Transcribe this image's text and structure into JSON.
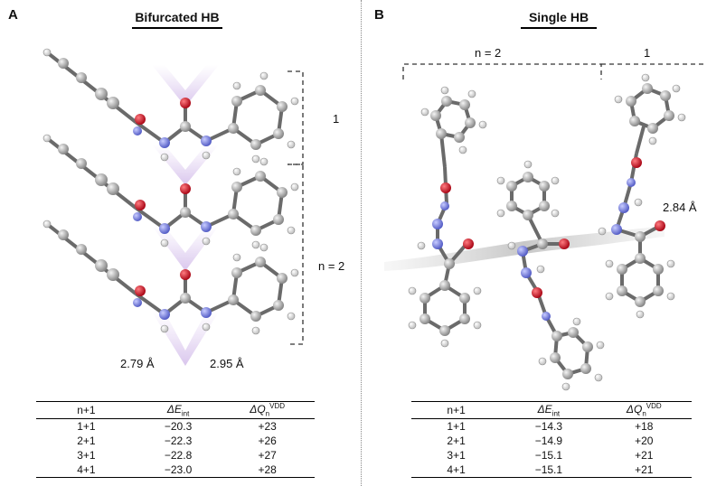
{
  "panelA": {
    "letter": "A",
    "title": "Bifurcated HB",
    "bracket_top": "1",
    "bracket_bottom": "n = 2",
    "dist_left": "2.79 Å",
    "dist_right": "2.95 Å",
    "table": {
      "headers": [
        "n+1",
        "ΔE",
        "int",
        "ΔQ",
        "n",
        "VDD"
      ],
      "rows": [
        [
          "1+1",
          "−20.3",
          "+23"
        ],
        [
          "2+1",
          "−22.3",
          "+26"
        ],
        [
          "3+1",
          "−22.8",
          "+27"
        ],
        [
          "4+1",
          "−23.0",
          "+28"
        ]
      ]
    }
  },
  "panelB": {
    "letter": "B",
    "title": "Single HB",
    "bracket_left": "n = 2",
    "bracket_right": "1",
    "dist": "2.84 Å",
    "table": {
      "headers": [
        "n+1",
        "ΔE",
        "int",
        "ΔQ",
        "n",
        "VDD"
      ],
      "rows": [
        [
          "1+1",
          "−14.3",
          "+18"
        ],
        [
          "2+1",
          "−14.9",
          "+20"
        ],
        [
          "3+1",
          "−15.1",
          "+21"
        ],
        [
          "4+1",
          "−15.1",
          "+21"
        ]
      ]
    }
  },
  "colors": {
    "carbon": "#9a9a9a",
    "nitrogen": "#6f78d8",
    "oxygen": "#d4141e",
    "hydrogen": "#ffffff",
    "hb_glow": "#b79bd6"
  }
}
